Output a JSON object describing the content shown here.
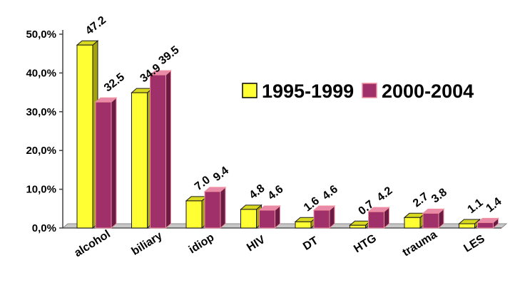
{
  "chart_data": {
    "type": "bar",
    "title": "",
    "xlabel": "",
    "ylabel": "",
    "categories": [
      "alcohol",
      "biliary",
      "idiop",
      "HIV",
      "DT",
      "HTG",
      "trauma",
      "LES"
    ],
    "series": [
      {
        "name": "1995-1999",
        "values": [
          47.2,
          34.9,
          7.0,
          4.8,
          1.6,
          0.7,
          2.7,
          1.1
        ],
        "labels": [
          "47.2",
          "34.9",
          "7.0",
          "4.8",
          "1.6",
          "0.7",
          "2.7",
          "1.1"
        ],
        "color": "#ffff33",
        "side_color": "#a3a30e",
        "top_color": "#d8d820"
      },
      {
        "name": "2000-2004",
        "values": [
          32.5,
          39.5,
          9.4,
          4.6,
          4.6,
          4.2,
          3.8,
          1.4
        ],
        "labels": [
          "32.5",
          "39.5",
          "9.4",
          "4.6",
          "4.6",
          "4.2",
          "3.8",
          "1.4"
        ],
        "color": "#a0306a",
        "side_color": "#6a1c45",
        "top_color": "#e98aa8",
        "edge_color": "#f08e9c"
      }
    ],
    "yticks": [
      "0,0%",
      "10,0%",
      "20,0%",
      "30,0%",
      "40,0%",
      "50,0%"
    ],
    "ylim": [
      0,
      50
    ],
    "grid": false,
    "legend_position": "right"
  }
}
